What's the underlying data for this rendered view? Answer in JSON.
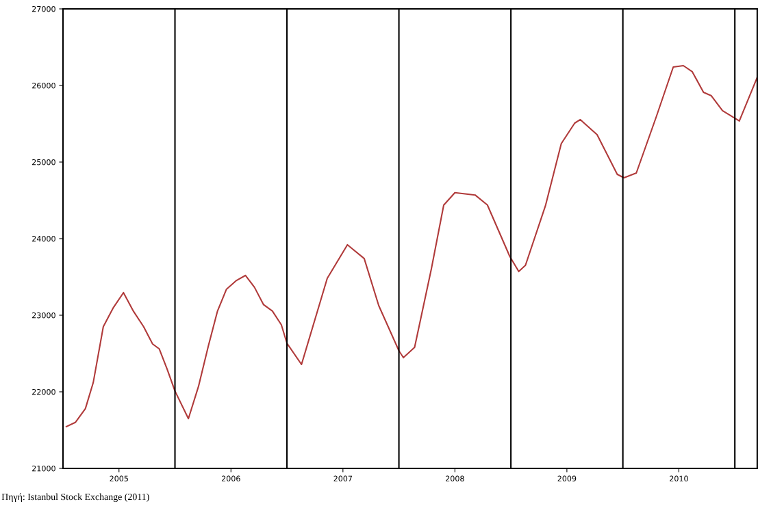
{
  "chart_data": {
    "type": "line",
    "x": [
      2005.03,
      2005.11,
      2005.2,
      2005.27,
      2005.36,
      2005.45,
      2005.54,
      2005.63,
      2005.72,
      2005.8,
      2005.86,
      2005.93,
      2006.0,
      2006.12,
      2006.21,
      2006.3,
      2006.38,
      2006.46,
      2006.55,
      2006.63,
      2006.71,
      2006.79,
      2006.87,
      2006.95,
      2007.0,
      2007.13,
      2007.36,
      2007.54,
      2007.69,
      2007.82,
      2008.0,
      2008.04,
      2008.14,
      2008.29,
      2008.4,
      2008.5,
      2008.68,
      2008.79,
      2008.99,
      2009.07,
      2009.13,
      2009.31,
      2009.45,
      2009.57,
      2009.62,
      2009.77,
      2009.95,
      2010.01,
      2010.12,
      2010.3,
      2010.45,
      2010.54,
      2010.62,
      2010.72,
      2010.79,
      2010.89,
      2011.04,
      2011.2
    ],
    "series": [
      {
        "color": "#b03a3a",
        "values": [
          21545,
          21600,
          21780,
          22120,
          22850,
          23100,
          23295,
          23050,
          22850,
          22625,
          22560,
          22295,
          22010,
          21650,
          22070,
          22610,
          23055,
          23340,
          23455,
          23520,
          23365,
          23140,
          23055,
          22875,
          22634,
          22357,
          23482,
          23920,
          23740,
          23125,
          22536,
          22446,
          22580,
          23607,
          24437,
          24600,
          24570,
          24440,
          23768,
          23571,
          23652,
          24437,
          25241,
          25509,
          25554,
          25357,
          24839,
          24795,
          24857,
          25598,
          26241,
          26259,
          26179,
          25911,
          25866,
          25670,
          25536,
          26107
        ]
      }
    ],
    "xlim": [
      2005.0,
      2011.2
    ],
    "xticks": [
      {
        "value": 2005.5,
        "label": "2005"
      },
      {
        "value": 2006.5,
        "label": "2006"
      },
      {
        "value": 2007.5,
        "label": "2007"
      },
      {
        "value": 2008.5,
        "label": "2008"
      },
      {
        "value": 2009.5,
        "label": "2009"
      },
      {
        "value": 2010.5,
        "label": "2010"
      }
    ],
    "ylim": [
      21000,
      27000
    ],
    "yticks": [
      21000,
      22000,
      23000,
      24000,
      25000,
      26000,
      27000
    ],
    "ref_lines": [
      {
        "axis": "x",
        "value": 2006,
        "color": "#000000"
      },
      {
        "axis": "x",
        "value": 2007,
        "color": "#000000"
      },
      {
        "axis": "x",
        "value": 2008,
        "color": "#000000"
      },
      {
        "axis": "x",
        "value": 2009,
        "color": "#000000"
      },
      {
        "axis": "x",
        "value": 2010,
        "color": "#000000"
      },
      {
        "axis": "x",
        "value": 2011,
        "color": "#000000"
      }
    ],
    "annotations": [
      "Πηγή: Istanbul Stock Exchange (2011)"
    ],
    "grid": false,
    "legend": false
  }
}
